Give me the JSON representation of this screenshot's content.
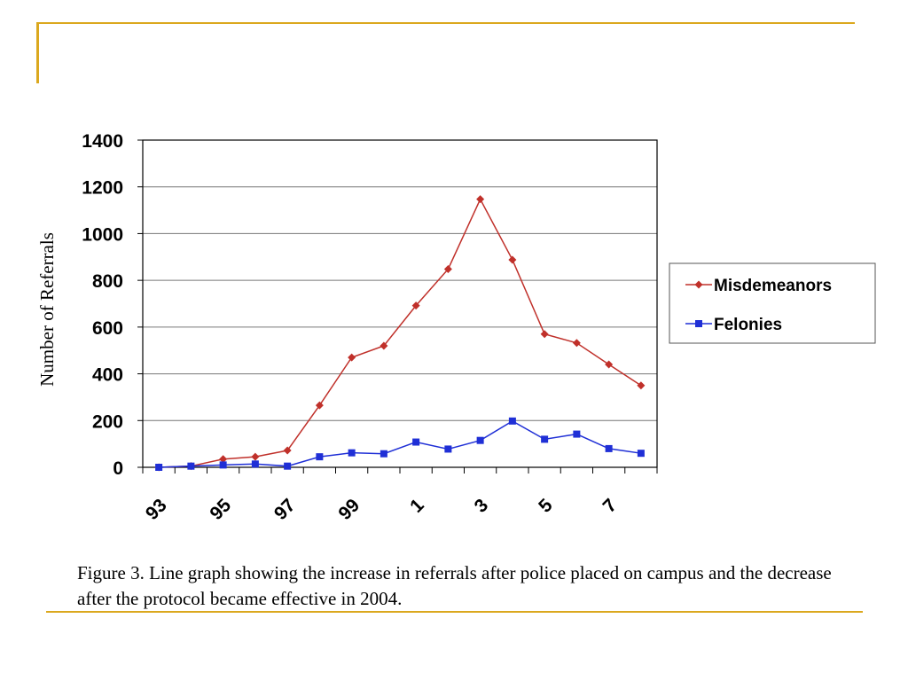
{
  "caption": "Figure 3.  Line graph showing the increase in referrals after police placed on campus and the decrease after the protocol became effective in 2004.",
  "chart_data": {
    "type": "line",
    "title": "",
    "xlabel": "",
    "ylabel": "Number of Referrals",
    "ylim": [
      0,
      1400
    ],
    "yticks": [
      0,
      200,
      400,
      600,
      800,
      1000,
      1200,
      1400
    ],
    "grid": true,
    "legend_position": "right",
    "x": [
      "93",
      "94",
      "95",
      "96",
      "97",
      "98",
      "99",
      "00",
      "1",
      "2",
      "3",
      "4",
      "5",
      "6",
      "7",
      "8"
    ],
    "x_tick_labels": [
      "93",
      "",
      "95",
      "",
      "97",
      "",
      "99",
      "",
      "1",
      "",
      "3",
      "",
      "5",
      "",
      "7",
      ""
    ],
    "series": [
      {
        "name": "Misdemeanors",
        "color": "#c0302a",
        "marker": "diamond",
        "values": [
          0,
          5,
          35,
          45,
          72,
          265,
          470,
          520,
          692,
          848,
          1147,
          888,
          570,
          532,
          440,
          350
        ]
      },
      {
        "name": "Felonies",
        "color": "#1f2fd6",
        "marker": "square",
        "values": [
          0,
          5,
          10,
          14,
          5,
          45,
          62,
          58,
          108,
          78,
          115,
          198,
          120,
          142,
          80,
          60
        ]
      }
    ]
  }
}
